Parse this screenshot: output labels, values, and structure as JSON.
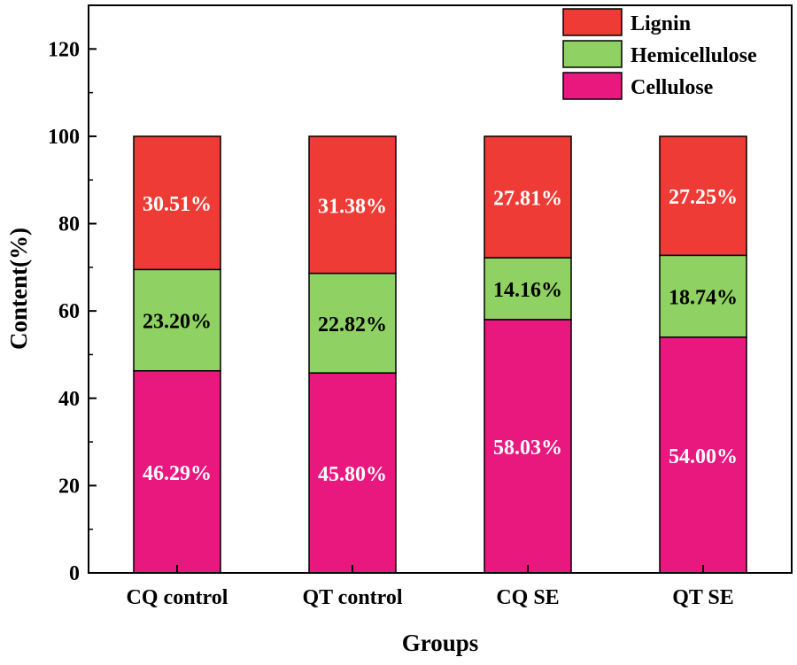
{
  "chart_data": {
    "type": "bar",
    "stacked": true,
    "title": "",
    "xlabel": "Groups",
    "ylabel": "Content(%)",
    "ylim": [
      0,
      130
    ],
    "yticks": [
      0,
      20,
      40,
      60,
      80,
      100,
      120
    ],
    "categories": [
      "CQ control",
      "QT control",
      "CQ SE",
      "QT SE"
    ],
    "legend_position": "top-right",
    "series": [
      {
        "name": "Cellulose",
        "color": "#e8187f",
        "label_color": "#ffffff",
        "values": [
          46.29,
          45.8,
          58.03,
          54.0
        ],
        "labels": [
          "46.29%",
          "45.80%",
          "58.03%",
          "54.00%"
        ]
      },
      {
        "name": "Hemicellulose",
        "color": "#8fd163",
        "label_color": "#000000",
        "values": [
          23.2,
          22.82,
          14.16,
          18.74
        ],
        "labels": [
          "23.20%",
          "22.82%",
          "14.16%",
          "18.74%"
        ]
      },
      {
        "name": "Lignin",
        "color": "#ef3b36",
        "label_color": "#ffffff",
        "values": [
          30.51,
          31.38,
          27.81,
          27.25
        ],
        "labels": [
          "30.51%",
          "31.38%",
          "27.81%",
          "27.25%"
        ]
      }
    ]
  }
}
